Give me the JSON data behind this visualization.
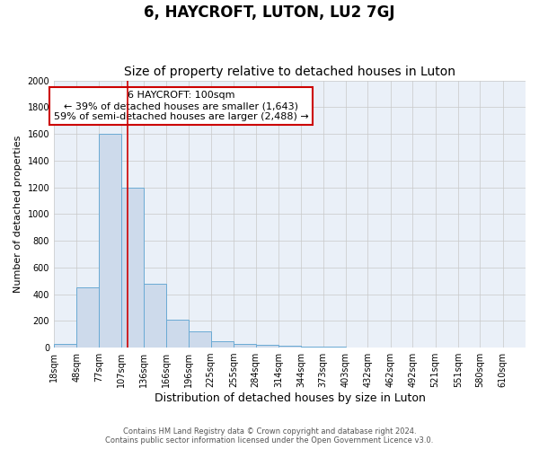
{
  "title": "6, HAYCROFT, LUTON, LU2 7GJ",
  "subtitle": "Size of property relative to detached houses in Luton",
  "xlabel": "Distribution of detached houses by size in Luton",
  "ylabel": "Number of detached properties",
  "bin_labels": [
    "18sqm",
    "48sqm",
    "77sqm",
    "107sqm",
    "136sqm",
    "166sqm",
    "196sqm",
    "225sqm",
    "255sqm",
    "284sqm",
    "314sqm",
    "344sqm",
    "373sqm",
    "403sqm",
    "432sqm",
    "462sqm",
    "492sqm",
    "521sqm",
    "551sqm",
    "580sqm",
    "610sqm"
  ],
  "bin_edges": [
    3,
    33,
    62,
    92,
    121,
    151,
    181,
    210,
    240,
    269,
    299,
    329,
    358,
    388,
    417,
    447,
    476,
    506,
    536,
    565,
    595,
    625
  ],
  "bar_values": [
    30,
    450,
    1600,
    1200,
    480,
    210,
    120,
    50,
    30,
    20,
    15,
    8,
    5,
    0,
    2,
    0,
    0,
    0,
    0,
    2,
    0
  ],
  "bar_color": "#cddaeb",
  "bar_edge_color": "#6aaad4",
  "red_line_x": 100,
  "ylim": [
    0,
    2000
  ],
  "yticks": [
    0,
    200,
    400,
    600,
    800,
    1000,
    1200,
    1400,
    1600,
    1800,
    2000
  ],
  "annotation_title": "6 HAYCROFT: 100sqm",
  "annotation_line1": "← 39% of detached houses are smaller (1,643)",
  "annotation_line2": "59% of semi-detached houses are larger (2,488) →",
  "annotation_box_facecolor": "#ffffff",
  "annotation_box_edgecolor": "#cc0000",
  "footer1": "Contains HM Land Registry data © Crown copyright and database right 2024.",
  "footer2": "Contains public sector information licensed under the Open Government Licence v3.0.",
  "bg_color": "#ffffff",
  "plot_bg_color": "#eaf0f8",
  "grid_color": "#c8c8c8",
  "title_fontsize": 12,
  "subtitle_fontsize": 10,
  "ylabel_fontsize": 8,
  "xlabel_fontsize": 9,
  "tick_fontsize": 7,
  "annot_fontsize": 8
}
